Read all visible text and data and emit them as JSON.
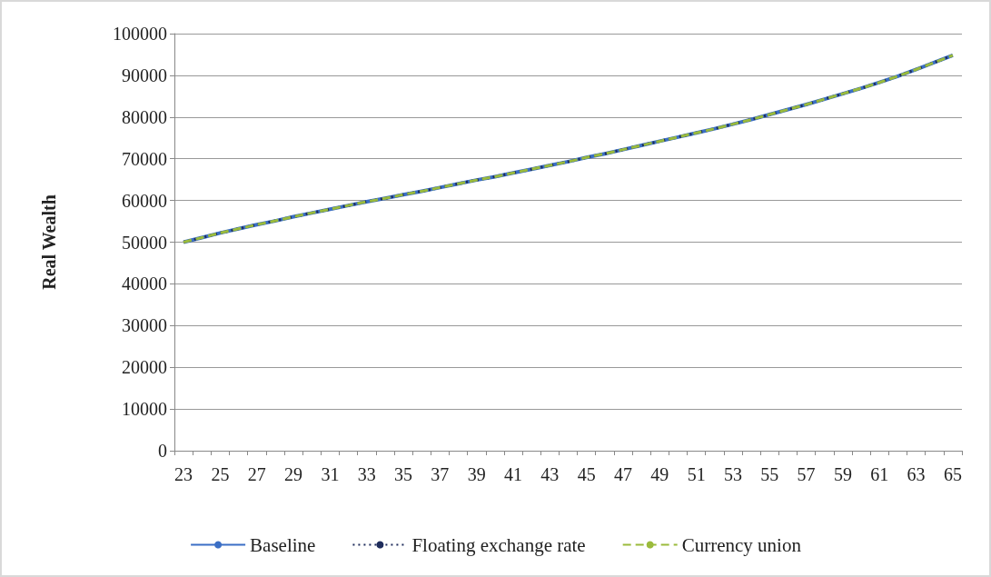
{
  "chart_data": {
    "type": "line",
    "ylabel": "Real Wealth",
    "categories": [
      "23",
      null,
      "25",
      null,
      "27",
      null,
      "29",
      null,
      "31",
      null,
      "33",
      null,
      "35",
      null,
      "37",
      null,
      "39",
      null,
      "41",
      null,
      "43",
      null,
      "45",
      null,
      "47",
      null,
      "49",
      null,
      "51",
      null,
      "53",
      null,
      "55",
      null,
      "57",
      null,
      "59",
      null,
      "61",
      null,
      "63",
      null,
      "65"
    ],
    "series": [
      {
        "name": "Baseline",
        "color": "#3b6fc5",
        "line_style": "solid",
        "values": [
          50000,
          51100,
          52200,
          53200,
          54200,
          55100,
          56100,
          57000,
          57900,
          58800,
          59700,
          60500,
          61400,
          62200,
          63100,
          64000,
          64900,
          65700,
          66600,
          67500,
          68400,
          69300,
          70300,
          71200,
          72200,
          73200,
          74200,
          75200,
          76200,
          77200,
          78300,
          79400,
          80600,
          81800,
          83000,
          84300,
          85600,
          86900,
          88300,
          89800,
          91400,
          93100,
          94800
        ]
      },
      {
        "name": "Floating exchange rate",
        "color": "#1f2d5c",
        "line_style": "dotted",
        "values": [
          50000,
          51100,
          52200,
          53200,
          54200,
          55100,
          56100,
          57000,
          57900,
          58800,
          59700,
          60500,
          61400,
          62200,
          63100,
          64000,
          64900,
          65700,
          66600,
          67500,
          68400,
          69300,
          70300,
          71200,
          72200,
          73200,
          74200,
          75200,
          76200,
          77200,
          78300,
          79400,
          80600,
          81800,
          83000,
          84300,
          85600,
          86900,
          88300,
          89800,
          91400,
          93100,
          94800
        ]
      },
      {
        "name": "Currency union",
        "color": "#9bbb3c",
        "line_style": "dashed",
        "values": [
          50000,
          51100,
          52200,
          53200,
          54200,
          55100,
          56100,
          57000,
          57900,
          58800,
          59700,
          60500,
          61400,
          62200,
          63100,
          64000,
          64900,
          65700,
          66600,
          67500,
          68400,
          69300,
          70300,
          71200,
          72200,
          73200,
          74200,
          75200,
          76200,
          77200,
          78300,
          79400,
          80600,
          81800,
          83000,
          84300,
          85600,
          86900,
          88300,
          89800,
          91400,
          93100,
          94800
        ]
      }
    ],
    "ylim": [
      0,
      100000
    ],
    "yticks": [
      0,
      10000,
      20000,
      30000,
      40000,
      50000,
      60000,
      70000,
      80000,
      90000,
      100000
    ],
    "grid": "y",
    "legend": "bottom",
    "marker": "none"
  }
}
